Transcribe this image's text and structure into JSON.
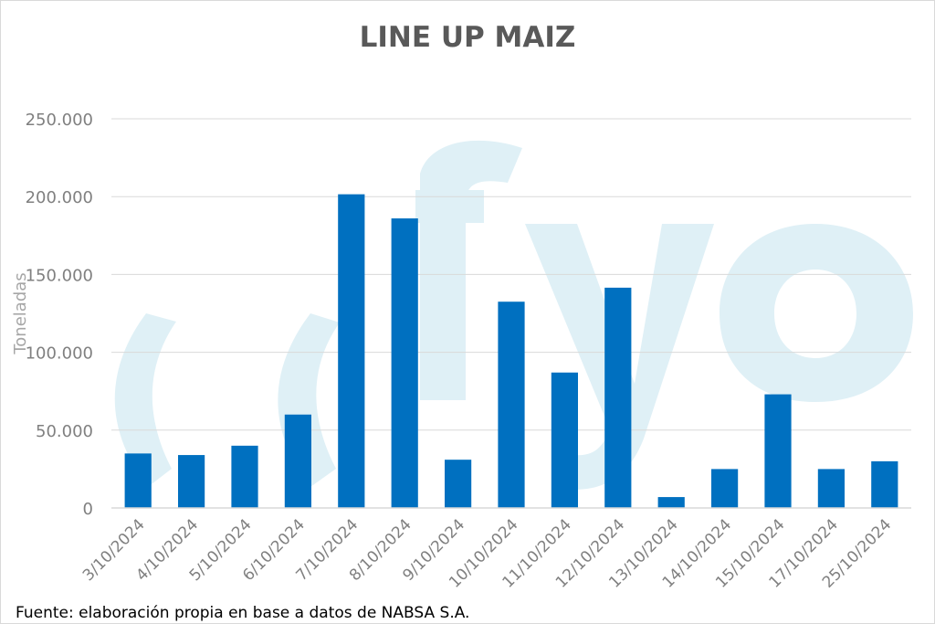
{
  "chart_data": {
    "type": "bar",
    "title": "LINE UP MAIZ",
    "ylabel": "Toneladas",
    "xlabel": "",
    "categories": [
      "3/10/2024",
      "4/10/2024",
      "5/10/2024",
      "6/10/2024",
      "7/10/2024",
      "8/10/2024",
      "9/10/2024",
      "10/10/2024",
      "11/10/2024",
      "12/10/2024",
      "13/10/2024",
      "14/10/2024",
      "15/10/2024",
      "17/10/2024",
      "25/10/2024"
    ],
    "values": [
      35000,
      34000,
      40000,
      60000,
      201500,
      186000,
      31000,
      132500,
      87000,
      141500,
      7000,
      25000,
      73000,
      25000,
      30000
    ],
    "ylim": [
      0,
      250000
    ],
    "yticks": [
      0,
      50000,
      100000,
      150000,
      200000,
      250000
    ],
    "ytick_labels": [
      "0",
      "50.000",
      "100.000",
      "150.000",
      "200.000",
      "250.000"
    ],
    "grid": true,
    "legend": "none",
    "bar_color": "#0070c0",
    "grid_color": "#d9d9d9",
    "watermark_color": "#dff0f6"
  },
  "source": "Fuente: elaboración propia en base a datos de NABSA S.A."
}
